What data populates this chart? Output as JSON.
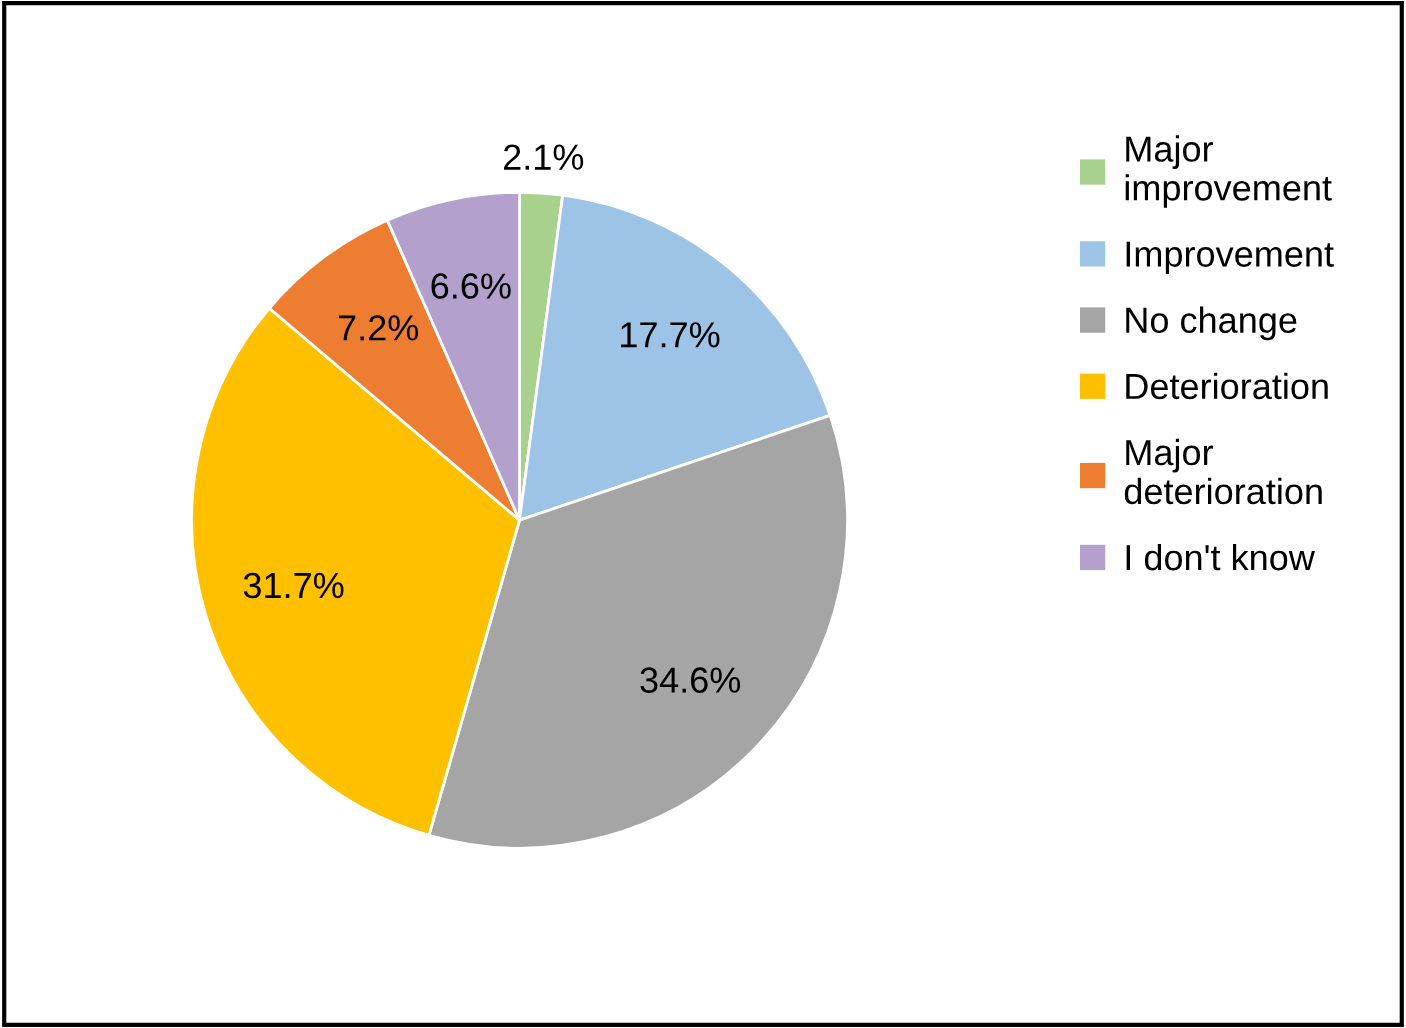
{
  "chart_data": {
    "type": "pie",
    "categories": [
      "Major improvement",
      "Improvement",
      "No change",
      "Deterioration",
      "Major deterioration",
      "I don't know"
    ],
    "values": [
      2.1,
      17.7,
      34.6,
      31.7,
      7.2,
      6.6
    ],
    "colors": [
      "#a9d18e",
      "#9dc3e6",
      "#a5a5a5",
      "#ffc000",
      "#ed7d31",
      "#b4a0cc"
    ],
    "value_labels": [
      "2.1%",
      "17.7%",
      "34.6%",
      "31.7%",
      "7.2%",
      "6.6%"
    ],
    "legend": "right"
  }
}
